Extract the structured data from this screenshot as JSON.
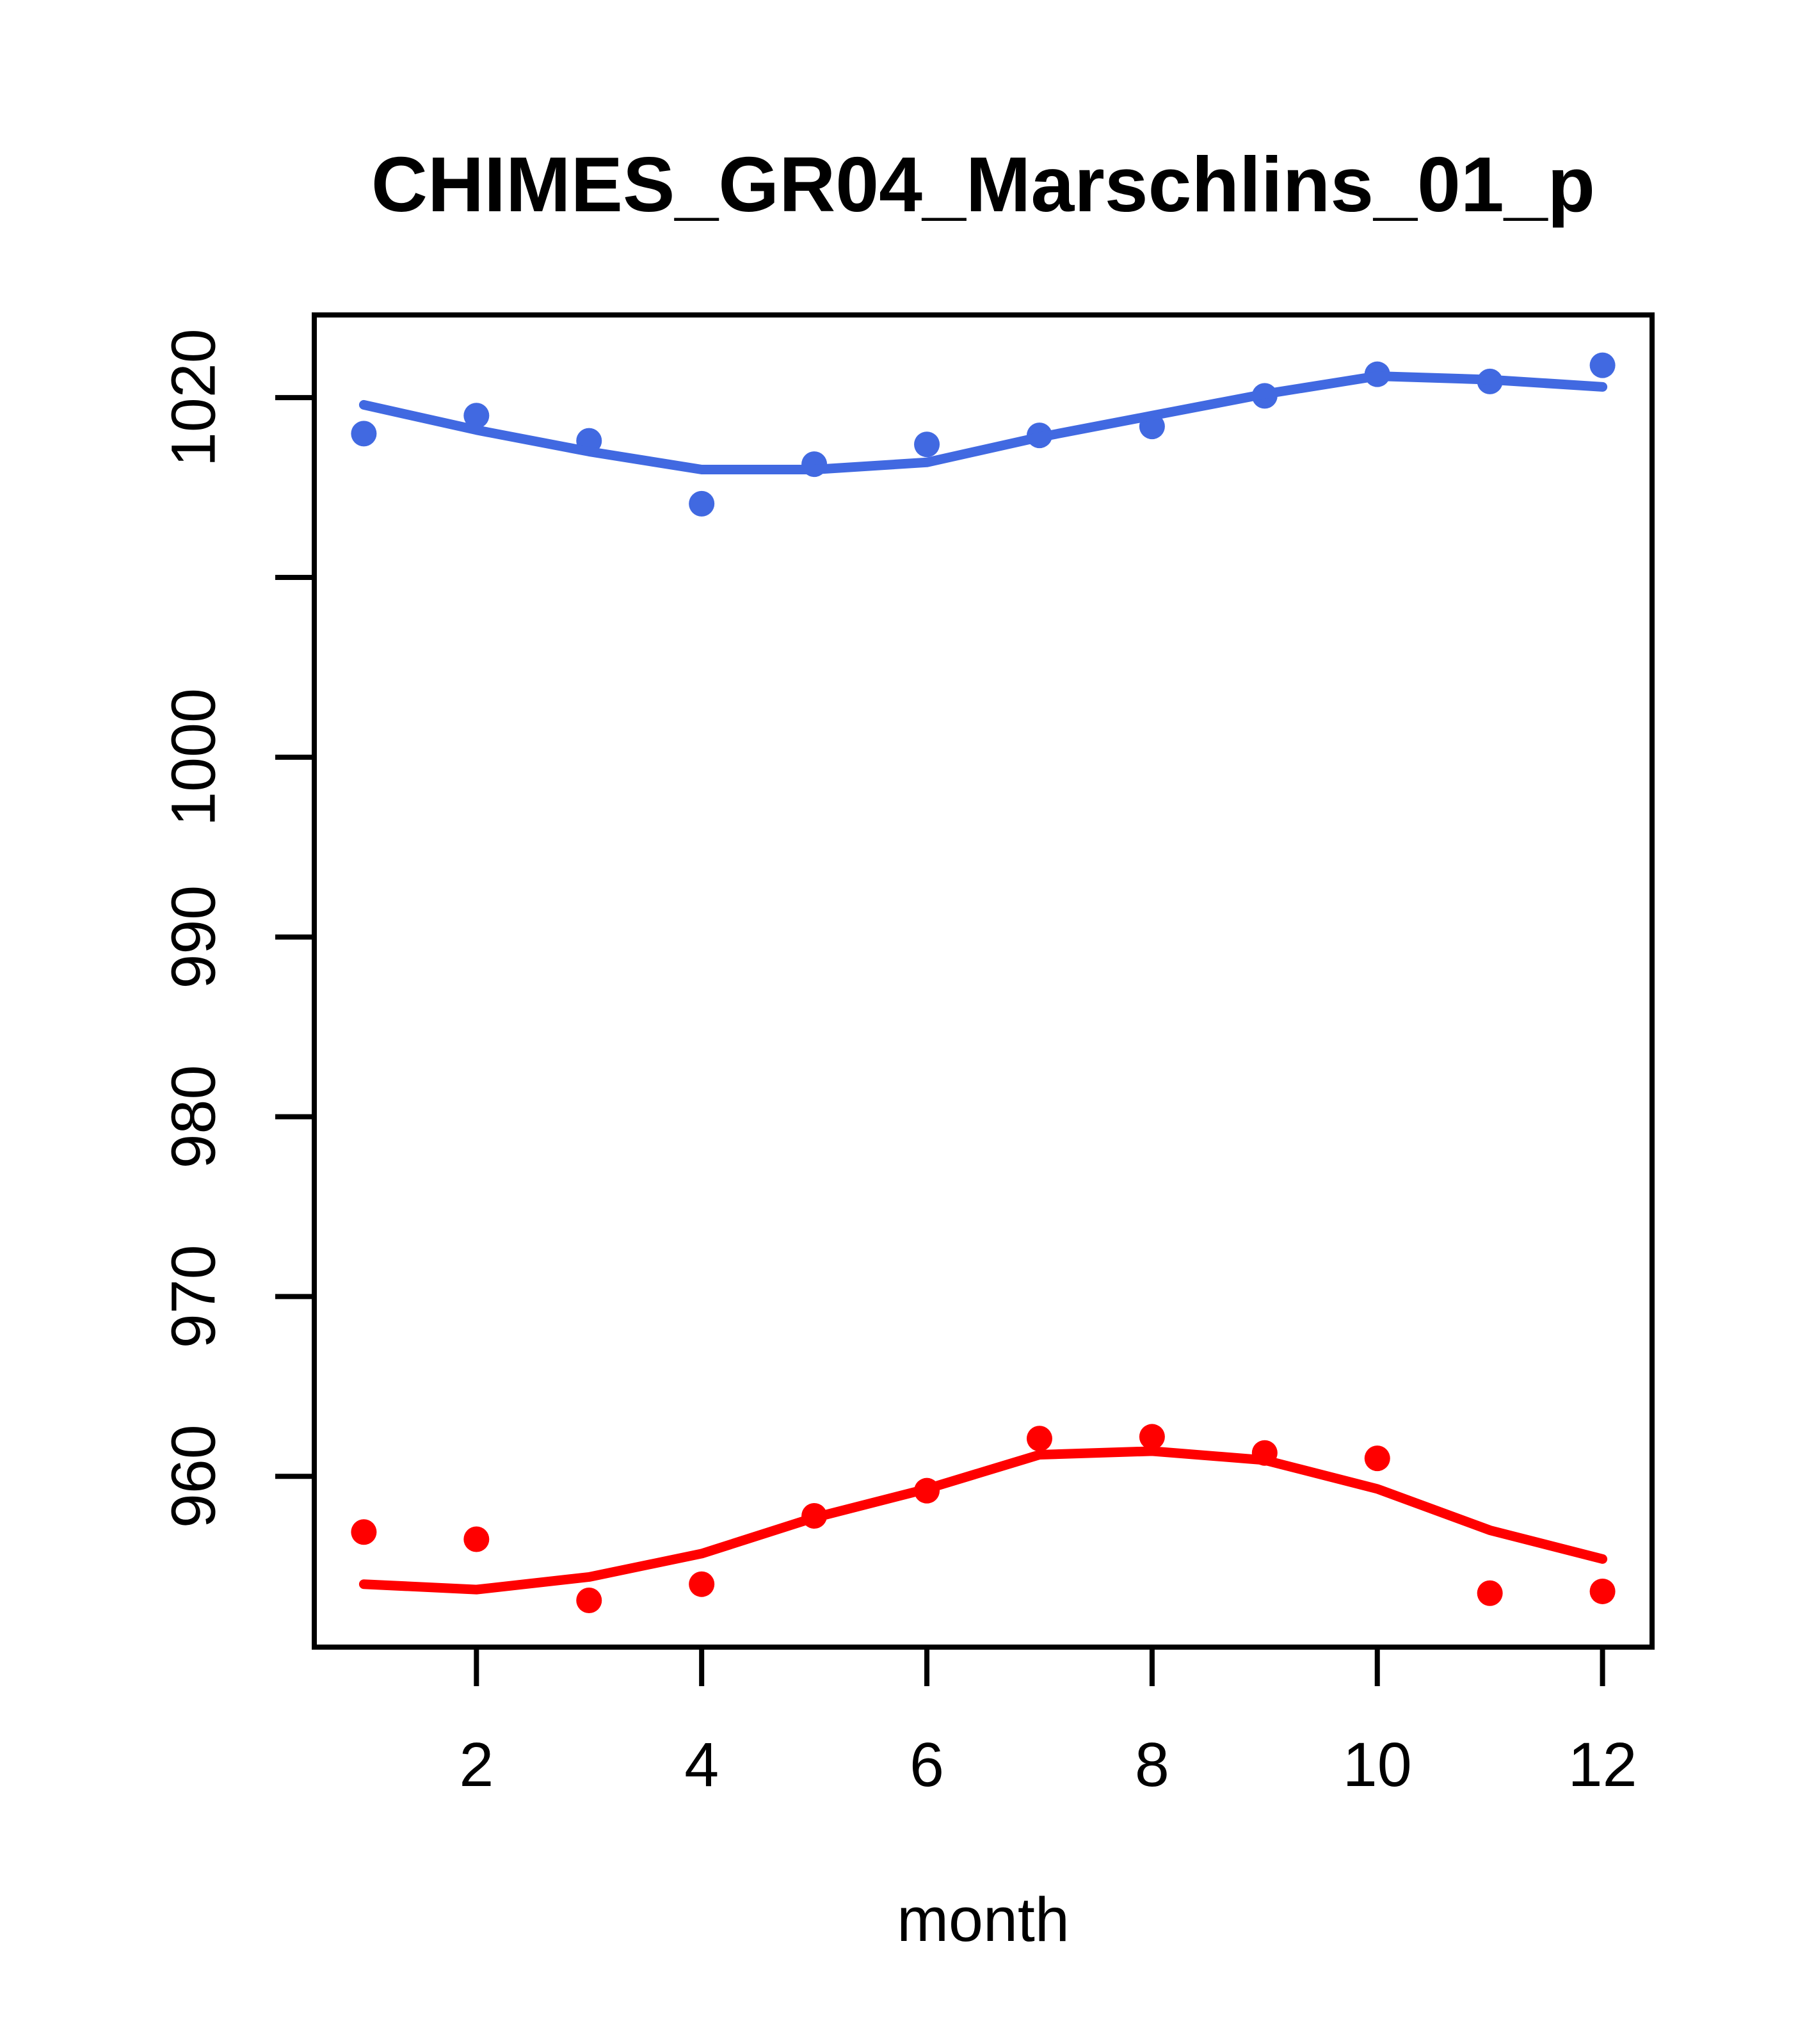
{
  "chart_data": {
    "type": "scatter",
    "title": "CHIMES_GR04_Marschlins_01_p",
    "xlabel": "month",
    "ylabel": "",
    "x": [
      1,
      2,
      3,
      4,
      5,
      6,
      7,
      8,
      9,
      10,
      11,
      12
    ],
    "series": [
      {
        "name": "blue-points",
        "kind": "points",
        "color": "#4169E1",
        "values": [
          1018.0,
          1019.0,
          1017.6,
          1014.1,
          1016.3,
          1017.4,
          1017.9,
          1018.4,
          1020.1,
          1021.3,
          1020.9,
          1021.8
        ]
      },
      {
        "name": "blue-smooth-line",
        "kind": "line",
        "color": "#4169E1",
        "values": [
          1019.6,
          1018.2,
          1017.0,
          1016.0,
          1016.0,
          1016.4,
          1017.8,
          1019.0,
          1020.2,
          1021.2,
          1021.0,
          1020.6
        ]
      },
      {
        "name": "red-points",
        "kind": "points",
        "color": "#FF0000",
        "values": [
          956.9,
          956.5,
          953.1,
          954.0,
          957.8,
          959.2,
          962.1,
          962.2,
          961.3,
          961.0,
          953.5,
          953.6
        ]
      },
      {
        "name": "red-smooth-line",
        "kind": "line",
        "color": "#FF0000",
        "values": [
          954.0,
          953.7,
          954.4,
          955.7,
          957.7,
          959.3,
          961.2,
          961.4,
          960.9,
          959.3,
          957.0,
          955.4
        ]
      }
    ],
    "x_ticks": {
      "values": [
        2,
        4,
        6,
        8,
        10,
        12
      ],
      "labels": [
        "2",
        "4",
        "6",
        "8",
        "10",
        "12"
      ]
    },
    "y_ticks": {
      "values": [
        960,
        970,
        980,
        990,
        1000,
        1010,
        1020
      ],
      "labels": [
        "960",
        "970",
        "980",
        "990",
        "1000",
        "",
        "1020"
      ]
    },
    "xlim": [
      0.56,
      12.44
    ],
    "ylim": [
      950.5,
      1024.6
    ],
    "grid": false,
    "legend": "none",
    "axis_color": "#000000",
    "background": "#FFFFFF"
  }
}
